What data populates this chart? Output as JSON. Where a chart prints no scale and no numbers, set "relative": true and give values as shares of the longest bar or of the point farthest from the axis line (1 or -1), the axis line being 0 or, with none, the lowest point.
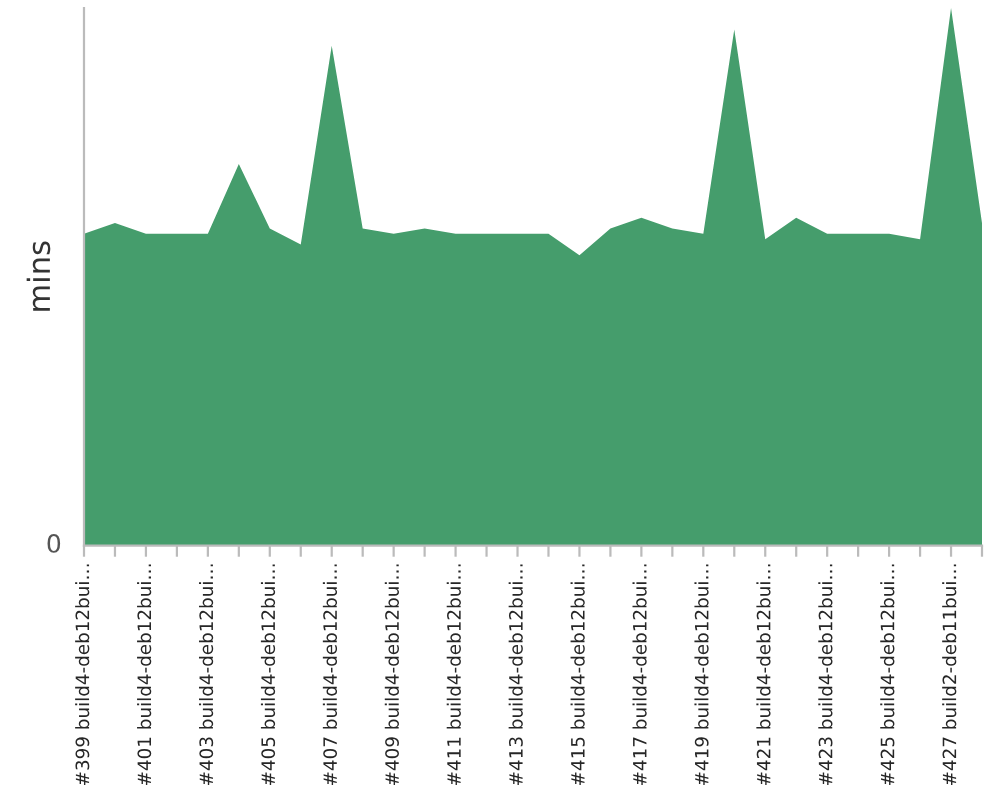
{
  "chart_data": {
    "type": "area",
    "ylabel": "mins",
    "relative": true,
    "annotations": [
      "0"
    ],
    "grid": false,
    "legend": false,
    "categories": [
      "#399 build4-deb12bui…",
      null,
      "#401 build4-deb12bui…",
      null,
      "#403 build4-deb12bui…",
      null,
      "#405 build4-deb12bui…",
      null,
      "#407 build4-deb12bui…",
      null,
      "#409 build4-deb12bui…",
      null,
      "#411 build4-deb12bui…",
      null,
      "#413 build4-deb12bui…",
      null,
      "#415 build4-deb12bui…",
      null,
      "#417 build4-deb12bui…",
      null,
      "#419 build4-deb12bui…",
      null,
      "#421 build4-deb12bui…",
      null,
      "#423 build4-deb12bui…",
      null,
      "#425 build4-deb12bui…",
      null,
      "#427 build2-deb11bui…",
      null
    ],
    "series": [
      {
        "color": "#459d6c",
        "values": [
          0.58,
          0.6,
          0.58,
          0.58,
          0.58,
          0.71,
          0.59,
          0.56,
          0.93,
          0.59,
          0.58,
          0.59,
          0.58,
          0.58,
          0.58,
          0.58,
          0.54,
          0.59,
          0.61,
          0.59,
          0.58,
          0.96,
          0.57,
          0.61,
          0.58,
          0.58,
          0.58,
          0.57,
          1,
          0.6
        ]
      }
    ]
  }
}
